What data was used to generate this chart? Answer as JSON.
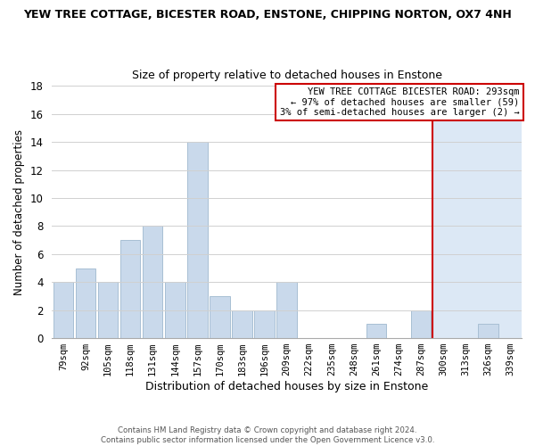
{
  "title_main": "YEW TREE COTTAGE, BICESTER ROAD, ENSTONE, CHIPPING NORTON, OX7 4NH",
  "title_sub": "Size of property relative to detached houses in Enstone",
  "xlabel": "Distribution of detached houses by size in Enstone",
  "ylabel": "Number of detached properties",
  "bar_labels": [
    "79sqm",
    "92sqm",
    "105sqm",
    "118sqm",
    "131sqm",
    "144sqm",
    "157sqm",
    "170sqm",
    "183sqm",
    "196sqm",
    "209sqm",
    "222sqm",
    "235sqm",
    "248sqm",
    "261sqm",
    "274sqm",
    "287sqm",
    "300sqm",
    "313sqm",
    "326sqm",
    "339sqm"
  ],
  "bar_values": [
    4,
    5,
    4,
    7,
    8,
    4,
    14,
    3,
    2,
    2,
    4,
    0,
    0,
    0,
    1,
    0,
    2,
    0,
    0,
    1,
    0
  ],
  "bar_color": "#c9d9eb",
  "bar_edgecolor": "#a8bfd4",
  "vline_color": "#cc0000",
  "vline_index": 17,
  "shade_color": "#dce8f5",
  "annotation_title": "YEW TREE COTTAGE BICESTER ROAD: 293sqm",
  "annotation_line1": "← 97% of detached houses are smaller (59)",
  "annotation_line2": "3% of semi-detached houses are larger (2) →",
  "annotation_box_color": "#ffffff",
  "annotation_box_edgecolor": "#cc0000",
  "ylim": [
    0,
    18
  ],
  "yticks": [
    0,
    2,
    4,
    6,
    8,
    10,
    12,
    14,
    16,
    18
  ],
  "footer_line1": "Contains HM Land Registry data © Crown copyright and database right 2024.",
  "footer_line2": "Contains public sector information licensed under the Open Government Licence v3.0.",
  "background_color": "#ffffff",
  "grid_color": "#d0d0d0"
}
